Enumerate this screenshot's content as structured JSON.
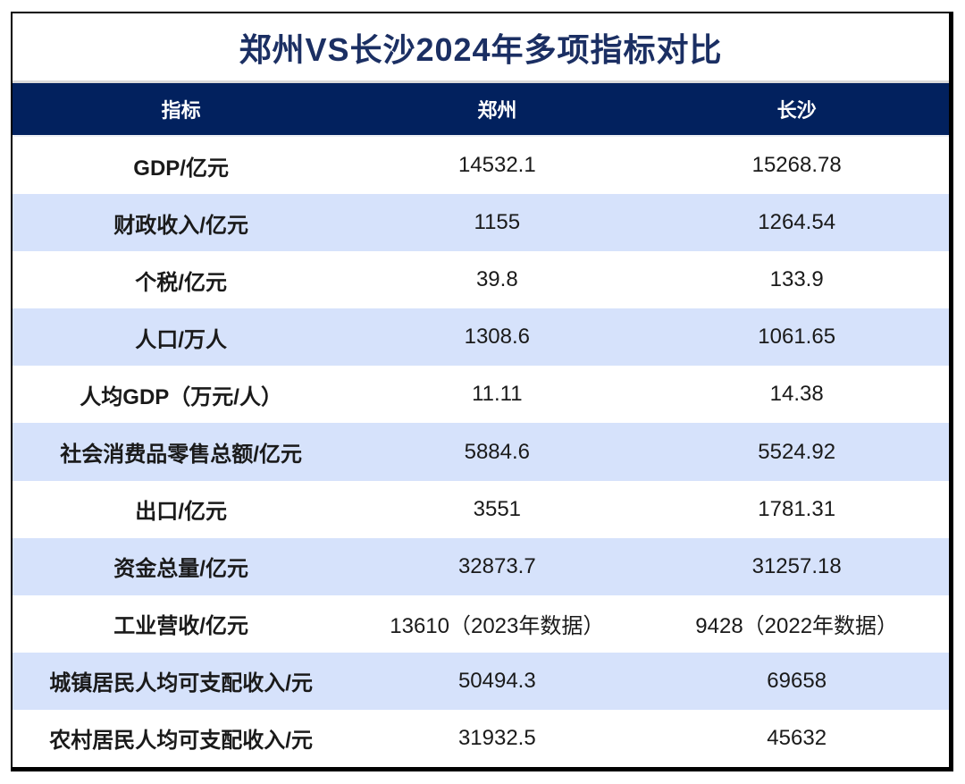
{
  "chart_data": {
    "type": "table",
    "title": "郑州VS长沙2024年多项指标对比",
    "columns": [
      "指标",
      "郑州",
      "长沙"
    ],
    "rows": [
      [
        "GDP/亿元",
        "14532.1",
        "15268.78"
      ],
      [
        "财政收入/亿元",
        "1155",
        "1264.54"
      ],
      [
        "个税/亿元",
        "39.8",
        "133.9"
      ],
      [
        "人口/万人",
        "1308.6",
        "1061.65"
      ],
      [
        "人均GDP（万元/人）",
        "11.11",
        "14.38"
      ],
      [
        "社会消费品零售总额/亿元",
        "5884.6",
        "5524.92"
      ],
      [
        "出口/亿元",
        "3551",
        "1781.31"
      ],
      [
        "资金总量/亿元",
        "32873.7",
        "31257.18"
      ],
      [
        "工业营收/亿元",
        "13610（2023年数据）",
        "9428（2022年数据）"
      ],
      [
        "城镇居民人均可支配收入/元",
        "50494.3",
        "69658"
      ],
      [
        "农村居民人均可支配收入/元",
        "31932.5",
        "45632"
      ]
    ],
    "layout": {
      "alternating_row_colors": true,
      "header_position": "top"
    }
  },
  "colors": {
    "header_bg": "#02215e",
    "header_text": "#ffffff",
    "title_text": "#1b2f63",
    "row_bg": "#ffffff",
    "row_alt_bg": "#d6e2fb",
    "row_text": "#1a1a1a",
    "border": "#000000"
  }
}
